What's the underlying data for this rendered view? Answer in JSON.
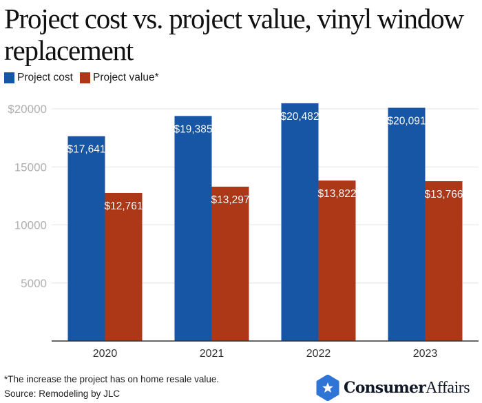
{
  "title": "Project cost vs. project value, vinyl window replacement",
  "legend": [
    {
      "label": "Project cost",
      "color": "#1756a5"
    },
    {
      "label": "Project value*",
      "color": "#ad3818"
    }
  ],
  "footnote": {
    "note": "*The increase the project has on home resale value.",
    "source": "Source: Remodeling by JLC"
  },
  "logo": {
    "bold": "Consumer",
    "light": "Affairs",
    "icon": "star-hexagon-icon",
    "color": "#2f75d6"
  },
  "chart_data": {
    "type": "bar",
    "title": "Project cost vs. project value, vinyl window replacement",
    "xlabel": "",
    "ylabel": "",
    "categories": [
      "2020",
      "2021",
      "2022",
      "2023"
    ],
    "series": [
      {
        "name": "Project cost",
        "color": "#1756a5",
        "values": [
          17641,
          19385,
          20482,
          20091
        ],
        "labels": [
          "$17,641",
          "$19,385",
          "$20,482",
          "$20,091"
        ]
      },
      {
        "name": "Project value*",
        "color": "#ad3818",
        "values": [
          12761,
          13297,
          13822,
          13766
        ],
        "labels": [
          "$12,761",
          "$13,297",
          "$13,822",
          "$13,766"
        ]
      }
    ],
    "ylim": [
      0,
      20000
    ],
    "yticks": [
      5000,
      10000,
      15000,
      20000
    ],
    "ytick_labels": [
      "5000",
      "10000",
      "15000",
      "$20000"
    ],
    "grid": true,
    "legend_position": "top-left"
  }
}
